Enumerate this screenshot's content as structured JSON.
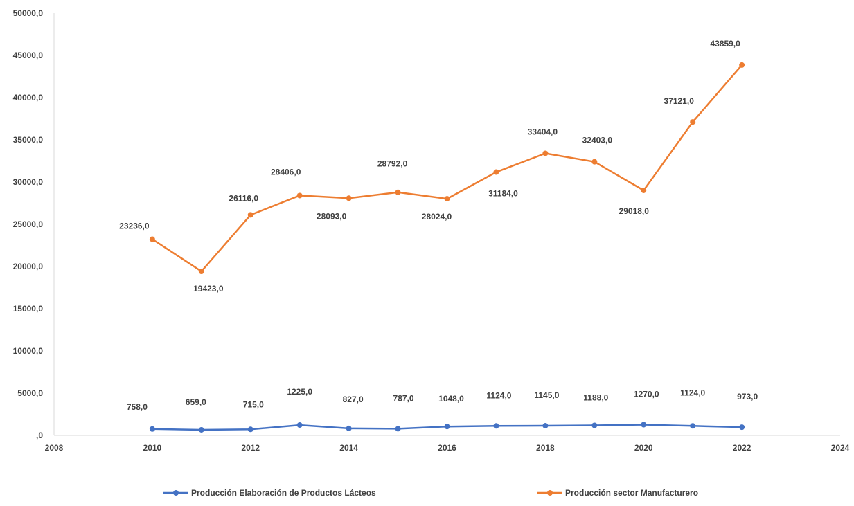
{
  "chart_data": {
    "type": "scatter",
    "mode": "lines+markers",
    "title": "",
    "xlabel": "",
    "ylabel": "",
    "xlim": [
      2008,
      2024
    ],
    "ylim": [
      0,
      50000
    ],
    "x_ticks": [
      2008,
      2010,
      2012,
      2014,
      2016,
      2018,
      2020,
      2022,
      2024
    ],
    "y_ticks": [
      0,
      5000,
      10000,
      15000,
      20000,
      25000,
      30000,
      35000,
      40000,
      45000,
      50000
    ],
    "y_tick_labels": [
      ",0",
      "5000,0",
      "10000,0",
      "15000,0",
      "20000,0",
      "25000,0",
      "30000,0",
      "35000,0",
      "40000,0",
      "45000,0",
      "50000,0"
    ],
    "grid": false,
    "legend_position": "bottom",
    "x": [
      2010,
      2011,
      2012,
      2013,
      2014,
      2015,
      2016,
      2017,
      2018,
      2019,
      2020,
      2021,
      2022
    ],
    "series": [
      {
        "name": "Producción Elaboración de Productos Lácteos",
        "color": "#4472C4",
        "values": [
          758,
          659,
          715,
          1225,
          827,
          787,
          1048,
          1124,
          1145,
          1188,
          1270,
          1124,
          973
        ],
        "labels": [
          "758,0",
          "659,0",
          "715,0",
          "1225,0",
          "827,0",
          "787,0",
          "1048,0",
          "1124,0",
          "1145,0",
          "1188,0",
          "1270,0",
          "1124,0",
          "973,0"
        ]
      },
      {
        "name": "Producción sector Manufacturero",
        "color": "#ED7D31",
        "values": [
          23236,
          19423,
          26116,
          28406,
          28093,
          28792,
          28024,
          31184,
          33404,
          32403,
          29018,
          37121,
          43859
        ],
        "labels": [
          "23236,0",
          "19423,0",
          "26116,0",
          "28406,0",
          "28093,0",
          "28792,0",
          "28024,0",
          "31184,0",
          "33404,0",
          "32403,0",
          "29018,0",
          "37121,0",
          "43859,0"
        ]
      }
    ]
  }
}
